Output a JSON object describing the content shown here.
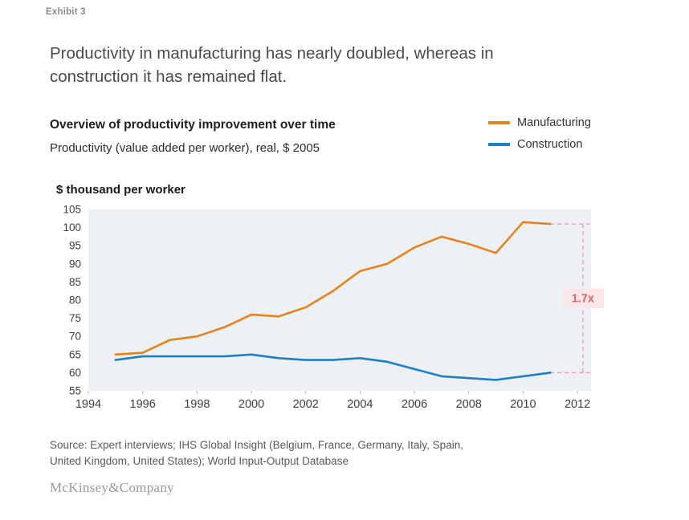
{
  "exhibit_label": "Exhibit 3",
  "title": "Productivity in manufacturing has nearly doubled, whereas in construction it has remained flat.",
  "chart_header": {
    "subtitle_bold": "Overview of productivity improvement over time",
    "subtitle": "Productivity (value added per worker), real, $ 2005",
    "axis_title": "$ thousand per worker"
  },
  "legend": [
    {
      "label": "Manufacturing",
      "color": "#e8821e"
    },
    {
      "label": "Construction",
      "color": "#1f7fc4"
    }
  ],
  "source": {
    "lines": [
      "Source: Expert interviews; IHS Global Insight (Belgium, France, Germany, Italy, Spain,",
      "United Kingdom, United States); World Input-Output Database"
    ]
  },
  "footer": {
    "logo_text": "McKinsey&Company"
  },
  "chart_data": {
    "type": "line",
    "title": "Overview of productivity improvement over time",
    "xlabel": "",
    "ylabel": "$ thousand per worker",
    "x": [
      1995,
      1996,
      1997,
      1998,
      1999,
      2000,
      2001,
      2002,
      2003,
      2004,
      2005,
      2006,
      2007,
      2008,
      2009,
      2010,
      2011
    ],
    "series": [
      {
        "name": "Manufacturing",
        "color": "#e8821e",
        "values": [
          65,
          65.5,
          69,
          70,
          72.5,
          76,
          75.5,
          78,
          82.5,
          88,
          90,
          94.5,
          97.5,
          95.5,
          93,
          101.5,
          101
        ]
      },
      {
        "name": "Construction",
        "color": "#1f7fc4",
        "values": [
          63.5,
          64.5,
          64.5,
          64.5,
          64.5,
          65,
          64,
          63.5,
          63.5,
          64,
          63,
          61,
          59,
          58.5,
          58,
          59,
          60
        ]
      }
    ],
    "xlim": [
      1994,
      2012.5
    ],
    "ylim": [
      55,
      105
    ],
    "xticks": [
      1994,
      1996,
      1998,
      2000,
      2002,
      2004,
      2006,
      2008,
      2010,
      2012
    ],
    "yticks": [
      55,
      60,
      65,
      70,
      75,
      80,
      85,
      90,
      95,
      100,
      105
    ],
    "grid": false,
    "legend_position": "top-right",
    "plot_bg": "#edf1f5",
    "annotation": {
      "text": "1.7x",
      "at_x": 2012.2,
      "from_value": 101,
      "to_value": 60,
      "line_color": "#f0a0a0",
      "text_color": "#e4606a",
      "box_color": "#fae8e8"
    }
  }
}
